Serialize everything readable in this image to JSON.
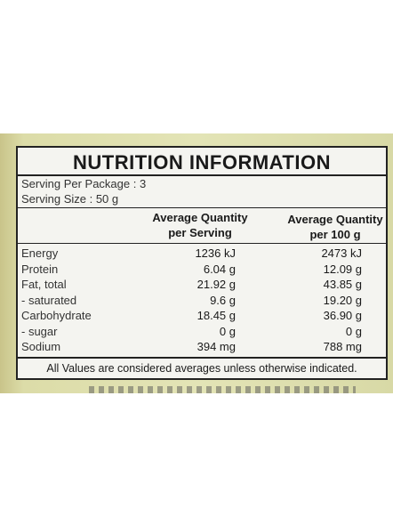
{
  "header": {
    "title": "NUTRITION INFORMATION"
  },
  "serving": {
    "per_package": "Serving Per Package : 3",
    "size": "Serving Size : 50 g"
  },
  "table": {
    "columns": [
      [
        "Average Quantity",
        "per Serving"
      ],
      [
        "Average Quantity",
        "per 100 g"
      ]
    ],
    "rows": [
      [
        "Energy",
        "1236 kJ",
        "2473 kJ"
      ],
      [
        "Protein",
        "6.04 g",
        "12.09 g"
      ],
      [
        "Fat, total",
        "21.92 g",
        "43.85 g"
      ],
      [
        "- saturated",
        "9.6 g",
        "19.20 g"
      ],
      [
        "Carbohydrate",
        "18.45 g",
        "36.90 g"
      ],
      [
        "- sugar",
        "0 g",
        "0 g"
      ],
      [
        "Sodium",
        "394 mg",
        "788 mg"
      ]
    ]
  },
  "footnote": "All Values are considered averages unless otherwise indicated."
}
